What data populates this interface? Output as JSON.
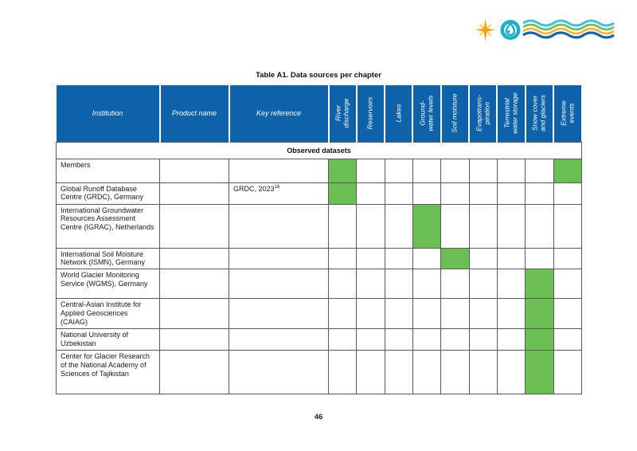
{
  "page": {
    "title": "Table A1. Data sources per chapter",
    "page_number": "46"
  },
  "logo": {
    "icons": [
      "star-sparkle-icon",
      "water-drop-icon",
      "wavy-lines-icon"
    ],
    "wave_colors": [
      "#3FC1DB",
      "#6CBF53",
      "#F9B233",
      "#1465A9"
    ],
    "star_color": "#F6A01A",
    "drop_ring_color": "#1BB0CE"
  },
  "table": {
    "text_headers": [
      "Institution",
      "Product name",
      "Key reference"
    ],
    "rotated_headers": [
      "River\ndischarge",
      "Reservoirs",
      "Lakes",
      "Ground-\nwater levels",
      "Soil moisture",
      "Evapotrans-\npiration",
      "Terrestrial\nwater storage",
      "Snow cover\nand glaciers",
      "Extreme\nevents"
    ],
    "section_label": "Observed datasets",
    "rows": [
      {
        "institution": "Members",
        "product_name": "",
        "key_reference": "",
        "key_reference_sup": "",
        "marks": [
          1,
          0,
          0,
          0,
          0,
          0,
          0,
          0,
          1
        ]
      },
      {
        "institution": "Global Runoff Database Centre (GRDC), Germany",
        "product_name": "",
        "key_reference": "GRDC, 2023",
        "key_reference_sup": "16",
        "marks": [
          1,
          0,
          0,
          0,
          0,
          0,
          0,
          0,
          0
        ]
      },
      {
        "institution": "International Groundwater Resources Assessment Centre (IGRAC), Netherlands",
        "product_name": "",
        "key_reference": "",
        "key_reference_sup": "",
        "marks": [
          0,
          0,
          0,
          1,
          0,
          0,
          0,
          0,
          0
        ]
      },
      {
        "institution": "International Soil Moisture Network (ISMN), Germany",
        "product_name": "",
        "key_reference": "",
        "key_reference_sup": "",
        "marks": [
          0,
          0,
          0,
          0,
          1,
          0,
          0,
          0,
          0
        ]
      },
      {
        "institution": "World Glacier Monitoring Service (WGMS), Germany",
        "product_name": "",
        "key_reference": "",
        "key_reference_sup": "",
        "marks": [
          0,
          0,
          0,
          0,
          0,
          0,
          0,
          1,
          0
        ]
      },
      {
        "institution": "Central-Asian Institute for Applied Geosciences (CAIAG)",
        "product_name": "",
        "key_reference": "",
        "key_reference_sup": "",
        "marks": [
          0,
          0,
          0,
          0,
          0,
          0,
          0,
          1,
          0
        ]
      },
      {
        "institution": "National University of Uzbekistan",
        "product_name": "",
        "key_reference": "",
        "key_reference_sup": "",
        "marks": [
          0,
          0,
          0,
          0,
          0,
          0,
          0,
          1,
          0
        ]
      },
      {
        "institution": "Center for Glacier Research of the National Academy of Sciences of Tajikistan",
        "product_name": "",
        "key_reference": "",
        "key_reference_sup": "",
        "marks": [
          0,
          0,
          0,
          0,
          0,
          0,
          0,
          1,
          0
        ]
      }
    ],
    "colors": {
      "header_blue": "#0E62A9",
      "mark_green": "#6CBF53",
      "border_gray": "#58595B"
    }
  }
}
